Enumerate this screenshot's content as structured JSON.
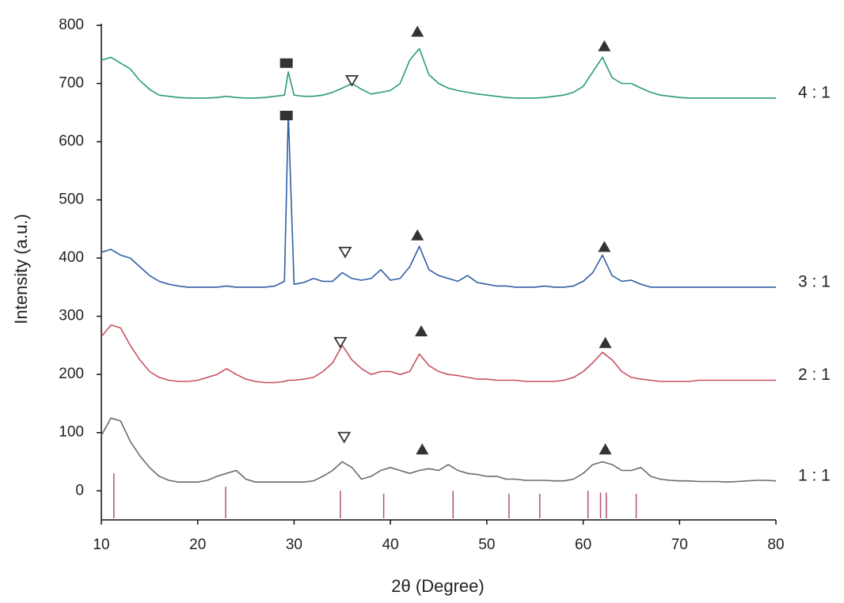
{
  "chart_data": {
    "type": "line",
    "xlabel": "2θ (Degree)",
    "ylabel": "Intensity (a.u.)",
    "x": [
      10,
      11,
      12,
      13,
      14,
      15,
      16,
      17,
      18,
      19,
      20,
      21,
      22,
      23,
      24,
      25,
      26,
      27,
      28,
      29,
      29.4,
      30,
      31,
      32,
      33,
      34,
      35,
      36,
      37,
      38,
      39,
      40,
      41,
      42,
      43,
      44,
      45,
      46,
      47,
      48,
      49,
      50,
      51,
      52,
      53,
      54,
      55,
      56,
      57,
      58,
      59,
      60,
      61,
      62,
      63,
      64,
      65,
      66,
      67,
      68,
      69,
      70,
      71,
      72,
      73,
      74,
      75,
      76,
      77,
      78,
      79,
      80
    ],
    "series": [
      {
        "name": "1 : 1",
        "color": "#6a6a6a",
        "values": [
          95,
          125,
          120,
          85,
          60,
          40,
          25,
          18,
          15,
          15,
          15,
          18,
          25,
          30,
          35,
          20,
          15,
          15,
          15,
          15,
          15,
          15,
          15,
          17,
          25,
          35,
          50,
          40,
          20,
          25,
          35,
          40,
          35,
          30,
          35,
          38,
          35,
          45,
          35,
          30,
          28,
          25,
          25,
          20,
          20,
          18,
          18,
          18,
          17,
          17,
          20,
          30,
          45,
          50,
          45,
          35,
          35,
          40,
          25,
          20,
          18,
          17,
          17,
          16,
          16,
          16,
          15,
          16,
          17,
          18,
          18,
          17
        ]
      },
      {
        "name": "2 : 1",
        "color": "#c8505e",
        "values": [
          265,
          285,
          280,
          250,
          225,
          205,
          195,
          190,
          188,
          188,
          190,
          195,
          200,
          210,
          200,
          192,
          188,
          186,
          186,
          188,
          190,
          190,
          192,
          195,
          205,
          220,
          250,
          225,
          210,
          200,
          205,
          205,
          200,
          205,
          235,
          215,
          205,
          200,
          198,
          195,
          192,
          192,
          190,
          190,
          190,
          188,
          188,
          188,
          188,
          190,
          195,
          205,
          220,
          238,
          225,
          205,
          195,
          192,
          190,
          188,
          188,
          188,
          188,
          190,
          190,
          190,
          190,
          190,
          190,
          190,
          190,
          190
        ]
      },
      {
        "name": "3 : 1",
        "color": "#2f5fa3",
        "values": [
          410,
          415,
          405,
          400,
          385,
          370,
          360,
          355,
          352,
          350,
          350,
          350,
          350,
          352,
          350,
          350,
          350,
          350,
          352,
          360,
          650,
          355,
          358,
          365,
          360,
          360,
          375,
          365,
          362,
          365,
          380,
          362,
          365,
          385,
          420,
          380,
          370,
          365,
          360,
          370,
          358,
          355,
          352,
          352,
          350,
          350,
          350,
          352,
          350,
          350,
          352,
          360,
          375,
          405,
          370,
          360,
          362,
          355,
          350,
          350,
          350,
          350,
          350,
          350,
          350,
          350,
          350,
          350,
          350,
          350,
          350,
          350
        ]
      },
      {
        "name": "4 : 1",
        "color": "#2a9a7c",
        "values": [
          740,
          745,
          735,
          725,
          705,
          690,
          680,
          678,
          676,
          675,
          675,
          675,
          676,
          678,
          676,
          675,
          675,
          676,
          678,
          680,
          720,
          680,
          678,
          678,
          680,
          685,
          692,
          700,
          690,
          682,
          685,
          688,
          700,
          740,
          760,
          715,
          700,
          692,
          688,
          685,
          682,
          680,
          678,
          676,
          675,
          675,
          675,
          676,
          678,
          680,
          685,
          695,
          720,
          745,
          710,
          700,
          700,
          692,
          685,
          680,
          678,
          676,
          675,
          675,
          675,
          675,
          675,
          675,
          675,
          675,
          675,
          675
        ]
      }
    ],
    "reference_peaks": {
      "color": "#b0507a",
      "x": [
        11.3,
        22.9,
        34.8,
        39.3,
        46.5,
        52.3,
        55.5,
        60.5,
        61.8,
        62.4,
        65.5
      ],
      "values": [
        30,
        7,
        0,
        -5,
        0,
        -5,
        -5,
        0,
        -3,
        -3,
        -5
      ]
    },
    "markers": [
      {
        "shape": "square",
        "x": 29.2,
        "y": 735
      },
      {
        "shape": "triangle-down",
        "x": 36,
        "y": 705
      },
      {
        "shape": "triangle",
        "x": 42.8,
        "y": 790
      },
      {
        "shape": "triangle",
        "x": 62.2,
        "y": 765
      },
      {
        "shape": "square",
        "x": 29.2,
        "y": 645
      },
      {
        "shape": "triangle-down",
        "x": 35.3,
        "y": 410
      },
      {
        "shape": "triangle",
        "x": 42.8,
        "y": 440
      },
      {
        "shape": "triangle",
        "x": 62.2,
        "y": 420
      },
      {
        "shape": "triangle-down",
        "x": 34.8,
        "y": 255
      },
      {
        "shape": "triangle",
        "x": 43.2,
        "y": 275
      },
      {
        "shape": "triangle",
        "x": 62.3,
        "y": 255
      },
      {
        "shape": "triangle-down",
        "x": 35.2,
        "y": 92
      },
      {
        "shape": "triangle",
        "x": 43.3,
        "y": 72
      },
      {
        "shape": "triangle",
        "x": 62.3,
        "y": 72
      }
    ],
    "xlim": [
      10,
      80
    ],
    "xticks": [
      10,
      20,
      30,
      40,
      50,
      60,
      70,
      80
    ],
    "ylim": [
      -50,
      800
    ],
    "yticks": [
      0,
      100,
      200,
      300,
      400,
      500,
      600,
      700,
      800
    ],
    "grid": false
  }
}
